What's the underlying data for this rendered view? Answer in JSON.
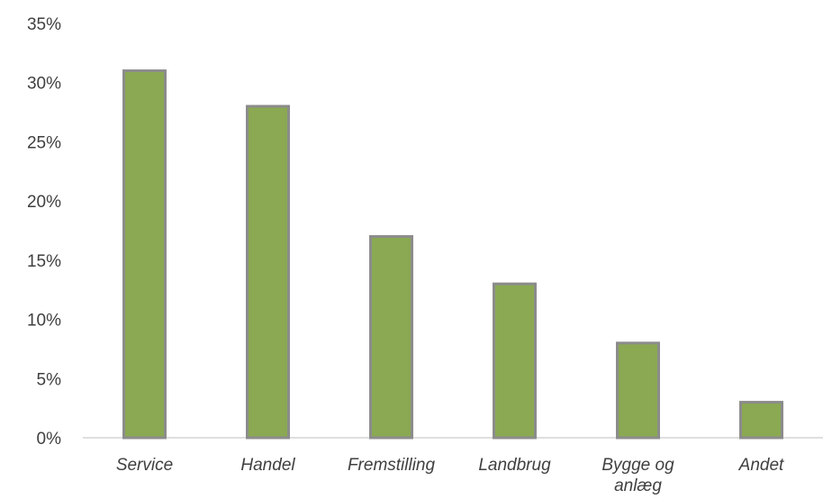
{
  "chart_data": {
    "type": "bar",
    "categories": [
      [
        "Service"
      ],
      [
        "Handel"
      ],
      [
        "Fremstilling"
      ],
      [
        "Landbrug"
      ],
      [
        "Bygge og",
        "anlæg"
      ],
      [
        "Andet"
      ]
    ],
    "values": [
      31,
      28,
      17,
      13,
      8,
      3
    ],
    "ylim": [
      0,
      35
    ],
    "yticks": [
      "0%",
      "5%",
      "10%",
      "15%",
      "20%",
      "25%",
      "30%",
      "35%"
    ],
    "y_tick_values": [
      0,
      5,
      10,
      15,
      20,
      25,
      30,
      35
    ],
    "grid": false,
    "colors": {
      "bar_fill": "#8aa952",
      "bar_stroke": "#8c8c8c",
      "axis": "#bfbfbf"
    }
  }
}
